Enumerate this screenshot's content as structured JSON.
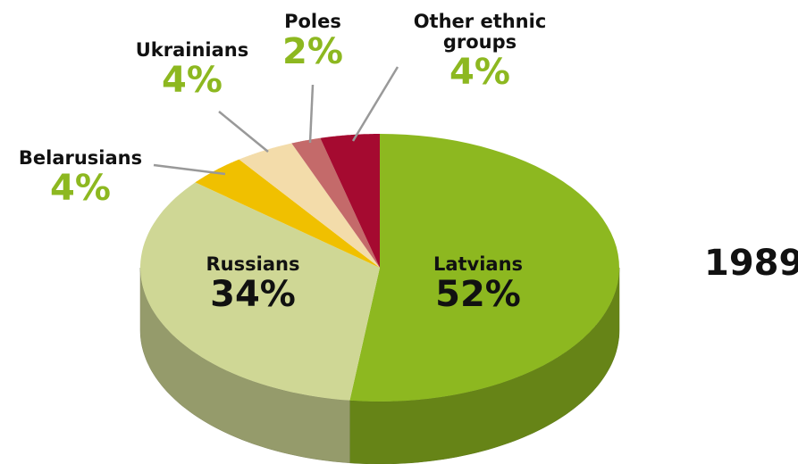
{
  "chart_data": {
    "type": "pie",
    "title": "1989",
    "categories": [
      "Latvians",
      "Russians",
      "Belarusians",
      "Ukrainians",
      "Poles",
      "Other ethnic groups"
    ],
    "values": [
      52,
      34,
      4,
      4,
      2,
      4
    ],
    "value_labels": [
      "52%",
      "34%",
      "4%",
      "4%",
      "2%",
      "4%"
    ],
    "colors": [
      "#8db820",
      "#cfd795",
      "#f0c000",
      "#f3dcaa",
      "#c46a6a",
      "#a50a30"
    ]
  }
}
